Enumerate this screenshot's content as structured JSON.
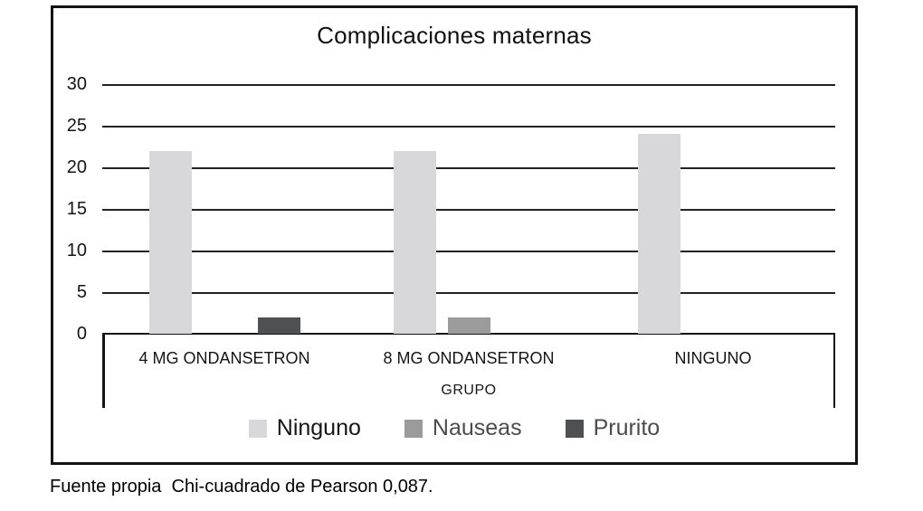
{
  "figure": {
    "title": "Complicaciones maternas",
    "source_note": "Fuente propia  Chi-cuadrado de Pearson 0,087."
  },
  "chart_data": {
    "type": "bar",
    "title": "Complicaciones maternas",
    "categories": [
      "4 MG ONDANSETRON",
      "8 MG ONDANSETRON",
      "NINGUNO"
    ],
    "series": [
      {
        "name": "Ninguno",
        "color": "#d8d8da",
        "label_color": "#161616",
        "values": [
          22,
          22,
          24
        ]
      },
      {
        "name": "Nauseas",
        "color": "#9b9b9b",
        "label_color": "#4c4c4c",
        "values": [
          0,
          2,
          0
        ]
      },
      {
        "name": "Prurito",
        "color": "#4f5052",
        "label_color": "#4c4c4c",
        "values": [
          2,
          0,
          0
        ]
      }
    ],
    "xlabel": "GRUPO",
    "ylabel": "",
    "ylim": [
      0,
      30
    ],
    "yticks": [
      30,
      25,
      20,
      15,
      10,
      5,
      0
    ],
    "grid": true,
    "legend_position": "bottom"
  }
}
